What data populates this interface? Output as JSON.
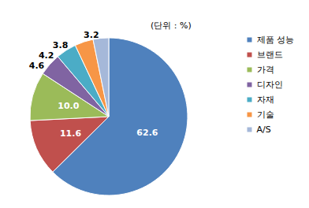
{
  "chart_data": {
    "type": "pie",
    "subtitle": "(단위 : %)",
    "categories": [
      "제품 성능",
      "브랜드",
      "가격",
      "디자인",
      "자재",
      "기술",
      "A/S"
    ],
    "values": [
      62.6,
      11.6,
      10.0,
      4.6,
      4.2,
      3.8,
      3.2
    ],
    "value_labels": [
      "62.6",
      "11.6",
      "10.0",
      "4.6",
      "4.2",
      "3.8",
      "3.2"
    ],
    "colors": [
      "#4f81bd",
      "#c0504d",
      "#9bbb59",
      "#8064a2",
      "#4bacc6",
      "#f79646",
      "#a5b8d9"
    ],
    "data_labels": true,
    "legend": "right"
  }
}
